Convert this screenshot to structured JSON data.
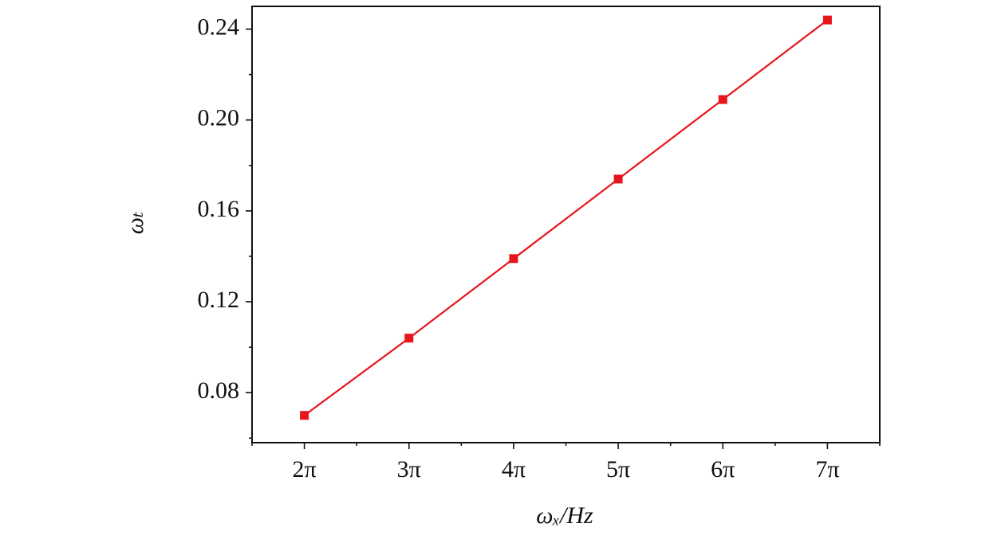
{
  "chart_data": {
    "type": "line",
    "xlabel": "ωₓ/Hz",
    "ylabel": "ωₜ",
    "x": [
      2,
      3,
      4,
      5,
      6,
      7
    ],
    "series": [
      {
        "color": "#e8141b",
        "values": [
          0.07,
          0.104,
          0.139,
          0.174,
          0.209,
          0.244
        ]
      }
    ],
    "xlim": [
      1.5,
      7.5
    ],
    "xticks": [
      {
        "value": 2,
        "label": "2π"
      },
      {
        "value": 3,
        "label": "3π"
      },
      {
        "value": 4,
        "label": "4π"
      },
      {
        "value": 5,
        "label": "5π"
      },
      {
        "value": 6,
        "label": "6π"
      },
      {
        "value": 7,
        "label": "7π"
      }
    ],
    "ylim": [
      0.058,
      0.25
    ],
    "yticks": [
      {
        "value": 0.08,
        "label": "0.08"
      },
      {
        "value": 0.12,
        "label": "0.12"
      },
      {
        "value": 0.16,
        "label": "0.16"
      },
      {
        "value": 0.2,
        "label": "0.20"
      },
      {
        "value": 0.24,
        "label": "0.24"
      }
    ],
    "grid": false
  }
}
